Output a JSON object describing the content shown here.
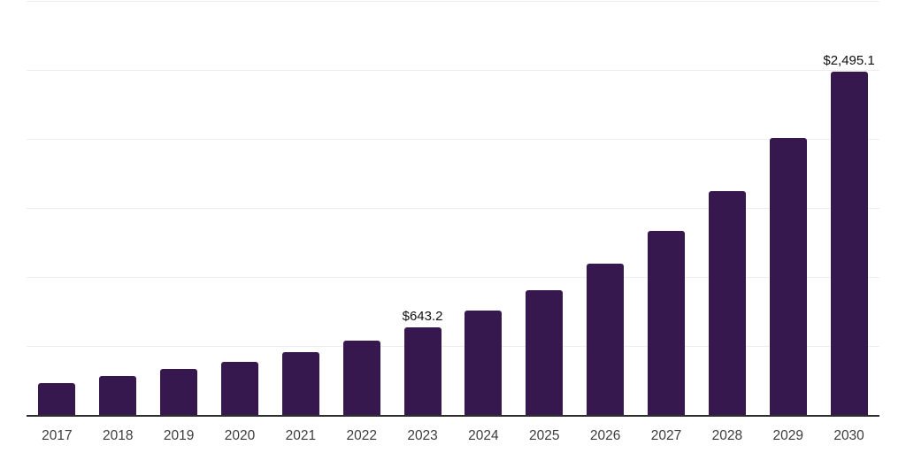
{
  "chart": {
    "background_color": "#ffffff",
    "bar_color": "#36184f",
    "gridline_color": "#ededed",
    "axis_line_color": "#2e2e2e",
    "x_label_color": "#3c3c3c",
    "data_label_color": "#101010"
  },
  "chart_data": {
    "type": "bar",
    "categories": [
      "2017",
      "2018",
      "2019",
      "2020",
      "2021",
      "2022",
      "2023",
      "2024",
      "2025",
      "2026",
      "2027",
      "2028",
      "2029",
      "2030"
    ],
    "values": [
      235,
      286,
      343,
      393,
      460,
      542,
      643.2,
      760,
      913,
      1100,
      1338,
      1631,
      2012,
      2495.1
    ],
    "data_labels": [
      null,
      null,
      null,
      null,
      null,
      null,
      "$643.2",
      null,
      null,
      null,
      null,
      null,
      null,
      "$2,495.1"
    ],
    "ylim": [
      0,
      3000
    ],
    "gridline_step": 500,
    "grid": true,
    "legend": false,
    "y_axis_tick_labels_visible": false,
    "x_axis_line_visible": true
  }
}
